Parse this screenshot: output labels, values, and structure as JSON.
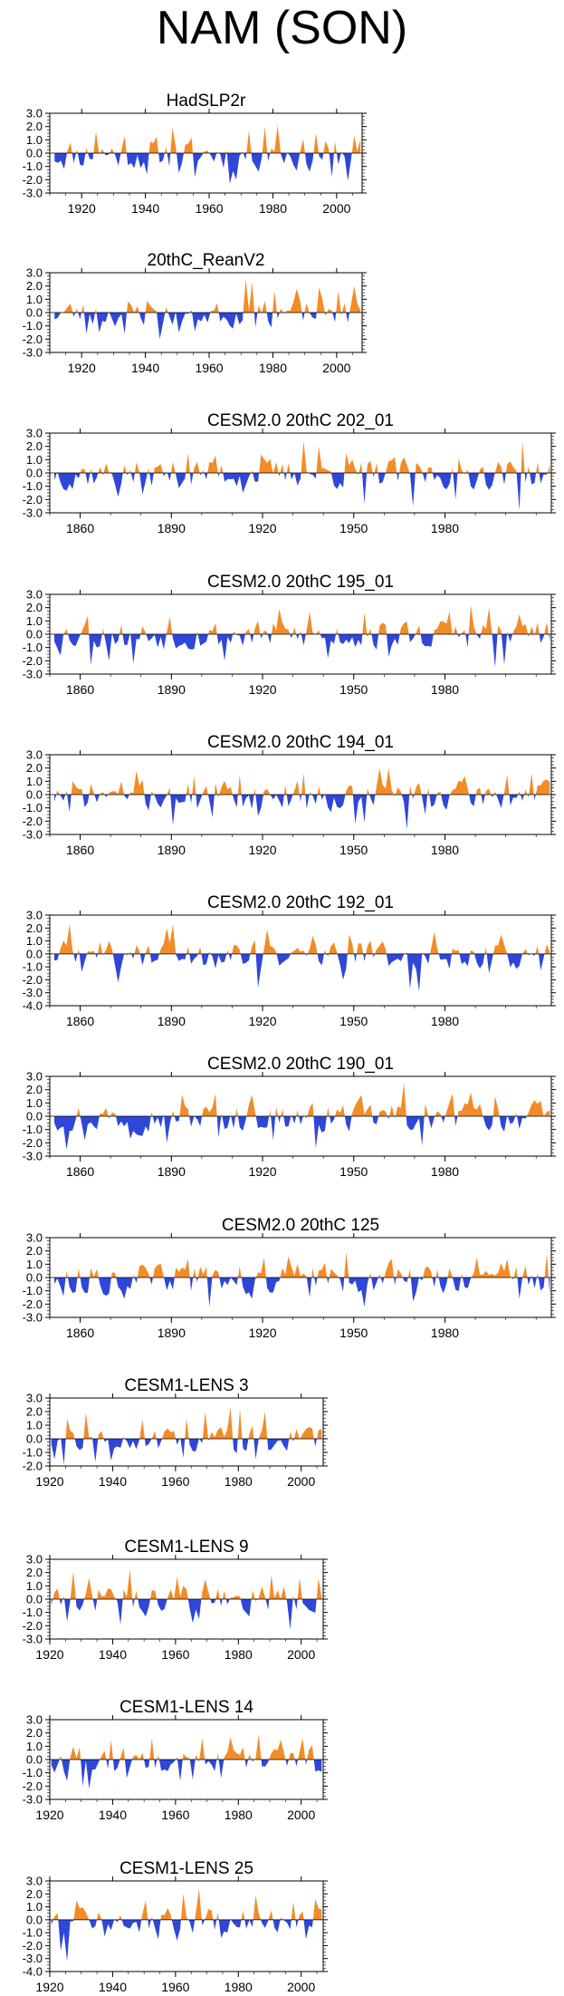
{
  "page": {
    "title": "NAM (SON)"
  },
  "colors": {
    "positive": "#f28c28",
    "negative": "#2f47d8",
    "axis": "#000000"
  },
  "chart_data": [
    {
      "type": "area",
      "title": "HadSLP2r",
      "x_range": [
        1910,
        2008
      ],
      "ylim": [
        -3.0,
        3.0
      ],
      "yticks": [
        "3.0",
        "2.0",
        "1.0",
        "0.0",
        "-1.0",
        "-2.0",
        "-3.0"
      ],
      "xticks": [
        "1920",
        "1940",
        "1960",
        "1980",
        "2000"
      ],
      "xtick_values": [
        1920,
        1940,
        1960,
        1980,
        2000
      ],
      "x_start": 1911,
      "amp_pos": 1.1,
      "amp_neg": 1.2,
      "seed": 11,
      "peaks": [
        [
          1924,
          1.6
        ],
        [
          1933,
          1.3
        ],
        [
          1948,
          1.9
        ],
        [
          1972,
          1.7
        ],
        [
          1977,
          2.0
        ],
        [
          1981,
          2.1
        ],
        [
          1993,
          1.5
        ],
        [
          2005,
          1.3
        ],
        [
          1940,
          -1.6
        ],
        [
          1950,
          -1.5
        ],
        [
          1955,
          -1.8
        ],
        [
          1966,
          -2.3
        ],
        [
          1968,
          -2.0
        ],
        [
          1991,
          -1.4
        ],
        [
          1998,
          -1.8
        ],
        [
          2003,
          -2.1
        ]
      ]
    },
    {
      "type": "area",
      "title": "20thC_ReanV2",
      "x_range": [
        1910,
        2008
      ],
      "ylim": [
        -3.0,
        3.0
      ],
      "yticks": [
        "3.0",
        "2.0",
        "1.0",
        "0.0",
        "-1.0",
        "-2.0",
        "-3.0"
      ],
      "xticks": [
        "1920",
        "1940",
        "1960",
        "1980",
        "2000"
      ],
      "xtick_values": [
        1920,
        1940,
        1960,
        1980,
        2000
      ],
      "x_start": 1911,
      "amp_pos": 0.9,
      "amp_neg": 1.0,
      "seed": 23,
      "peaks": [
        [
          1940,
          0.9
        ],
        [
          1962,
          0.7
        ],
        [
          1971,
          2.5
        ],
        [
          1973,
          2.3
        ],
        [
          1980,
          1.6
        ],
        [
          1987,
          1.8
        ],
        [
          1994,
          1.9
        ],
        [
          2000,
          1.6
        ],
        [
          2005,
          2.0
        ],
        [
          1921,
          -1.6
        ],
        [
          1925,
          -1.5
        ],
        [
          1933,
          -1.6
        ],
        [
          1944,
          -2.0
        ],
        [
          1950,
          -1.5
        ],
        [
          1955,
          -1.4
        ],
        [
          1967,
          -1.2
        ]
      ]
    },
    {
      "type": "area",
      "title": "CESM2.0 20thC 202_01",
      "x_range": [
        1850,
        2015
      ],
      "ylim": [
        -3.0,
        3.0
      ],
      "yticks": [
        "3.0",
        "2.0",
        "1.0",
        "0.0",
        "-1.0",
        "-2.0",
        "-3.0"
      ],
      "xticks": [
        "1860",
        "1890",
        "1920",
        "1950",
        "1980"
      ],
      "xtick_values": [
        1860,
        1890,
        1920,
        1950,
        1980
      ],
      "x_start": 1851,
      "amp_pos": 1.0,
      "amp_neg": 1.1,
      "seed": 37,
      "peaks": [
        [
          1895,
          1.5
        ],
        [
          1904,
          1.3
        ],
        [
          1919,
          1.4
        ],
        [
          1933,
          2.4
        ],
        [
          1938,
          2.0
        ],
        [
          1947,
          1.5
        ],
        [
          1963,
          1.2
        ],
        [
          1983,
          1.6
        ],
        [
          2005,
          2.4
        ],
        [
          1857,
          -1.2
        ],
        [
          1872,
          -1.8
        ],
        [
          1880,
          -1.6
        ],
        [
          1913,
          -1.5
        ],
        [
          1953,
          -2.3
        ],
        [
          1969,
          -2.5
        ],
        [
          1983,
          -2.0
        ],
        [
          2004,
          -2.8
        ]
      ]
    },
    {
      "type": "area",
      "title": "CESM2.0 20thC 195_01",
      "x_range": [
        1850,
        2015
      ],
      "ylim": [
        -3.0,
        3.0
      ],
      "yticks": [
        "3.0",
        "2.0",
        "1.0",
        "0.0",
        "-1.0",
        "-2.0",
        "-3.0"
      ],
      "xticks": [
        "1860",
        "1890",
        "1920",
        "1950",
        "1980"
      ],
      "xtick_values": [
        1860,
        1890,
        1920,
        1950,
        1980
      ],
      "x_start": 1851,
      "amp_pos": 1.0,
      "amp_neg": 1.1,
      "seed": 53,
      "peaks": [
        [
          1862,
          1.4
        ],
        [
          1889,
          1.3
        ],
        [
          1925,
          1.9
        ],
        [
          1935,
          1.7
        ],
        [
          1953,
          1.6
        ],
        [
          1981,
          1.7
        ],
        [
          1988,
          2.2
        ],
        [
          1994,
          2.0
        ],
        [
          2004,
          1.5
        ],
        [
          1853,
          -1.6
        ],
        [
          1863,
          -2.3
        ],
        [
          1869,
          -2.0
        ],
        [
          1877,
          -2.2
        ],
        [
          1907,
          -2.0
        ],
        [
          1941,
          -1.8
        ],
        [
          1961,
          -1.7
        ],
        [
          1996,
          -2.5
        ],
        [
          1999,
          -2.3
        ]
      ]
    },
    {
      "type": "area",
      "title": "CESM2.0 20thC 194_01",
      "x_range": [
        1850,
        2015
      ],
      "ylim": [
        -3.0,
        3.0
      ],
      "yticks": [
        "3.0",
        "2.0",
        "1.0",
        "0.0",
        "-1.0",
        "-2.0",
        "-3.0"
      ],
      "xticks": [
        "1860",
        "1890",
        "1920",
        "1950",
        "1980"
      ],
      "xtick_values": [
        1860,
        1890,
        1920,
        1950,
        1980
      ],
      "x_start": 1851,
      "amp_pos": 1.0,
      "amp_neg": 1.1,
      "seed": 71,
      "peaks": [
        [
          1878,
          1.8
        ],
        [
          1897,
          1.4
        ],
        [
          1912,
          1.5
        ],
        [
          1933,
          1.6
        ],
        [
          1958,
          2.0
        ],
        [
          1961,
          2.0
        ],
        [
          1986,
          1.4
        ],
        [
          2000,
          1.5
        ],
        [
          2008,
          1.6
        ],
        [
          1856,
          -1.3
        ],
        [
          1890,
          -2.3
        ],
        [
          1903,
          -1.7
        ],
        [
          1918,
          -1.6
        ],
        [
          1950,
          -2.2
        ],
        [
          1953,
          -2.1
        ],
        [
          1967,
          -2.6
        ],
        [
          1973,
          -1.5
        ]
      ]
    },
    {
      "type": "area",
      "title": "CESM2.0 20thC 192_01",
      "x_range": [
        1850,
        2015
      ],
      "ylim": [
        -4.0,
        3.0
      ],
      "yticks": [
        "3.0",
        "2.0",
        "1.0",
        "0.0",
        "-1.0",
        "-2.0",
        "-3.0",
        "-4.0"
      ],
      "xticks": [
        "1860",
        "1890",
        "1920",
        "1950",
        "1980"
      ],
      "xtick_values": [
        1860,
        1890,
        1920,
        1950,
        1980
      ],
      "x_start": 1851,
      "amp_pos": 1.0,
      "amp_neg": 1.1,
      "seed": 89,
      "peaks": [
        [
          1856,
          2.3
        ],
        [
          1888,
          2.0
        ],
        [
          1890,
          2.3
        ],
        [
          1921,
          1.9
        ],
        [
          1936,
          1.4
        ],
        [
          1948,
          1.5
        ],
        [
          1976,
          1.7
        ],
        [
          1998,
          1.5
        ],
        [
          1860,
          -1.4
        ],
        [
          1872,
          -2.2
        ],
        [
          1918,
          -2.6
        ],
        [
          1946,
          -2.0
        ],
        [
          1968,
          -2.7
        ],
        [
          1971,
          -2.9
        ],
        [
          1994,
          -1.5
        ],
        [
          2011,
          -1.3
        ]
      ]
    },
    {
      "type": "area",
      "title": "CESM2.0 20thC 190_01",
      "x_range": [
        1850,
        2015
      ],
      "ylim": [
        -3.0,
        3.0
      ],
      "yticks": [
        "3.0",
        "2.0",
        "1.0",
        "0.0",
        "-1.0",
        "-2.0",
        "-3.0"
      ],
      "xticks": [
        "1860",
        "1890",
        "1920",
        "1950",
        "1980"
      ],
      "xtick_values": [
        1860,
        1890,
        1920,
        1950,
        1980
      ],
      "x_start": 1851,
      "amp_pos": 1.0,
      "amp_neg": 1.1,
      "seed": 97,
      "peaks": [
        [
          1893,
          1.6
        ],
        [
          1904,
          1.7
        ],
        [
          1916,
          1.6
        ],
        [
          1952,
          1.6
        ],
        [
          1966,
          2.5
        ],
        [
          1982,
          1.7
        ],
        [
          1988,
          1.8
        ],
        [
          1996,
          1.5
        ],
        [
          1855,
          -2.5
        ],
        [
          1861,
          -1.8
        ],
        [
          1876,
          -1.7
        ],
        [
          1888,
          -2.0
        ],
        [
          1905,
          -1.6
        ],
        [
          1923,
          -1.8
        ],
        [
          1937,
          -2.4
        ],
        [
          1972,
          -2.2
        ]
      ]
    },
    {
      "type": "area",
      "title": "CESM2.0 20thC 125",
      "x_range": [
        1850,
        2015
      ],
      "ylim": [
        -3.0,
        3.0
      ],
      "yticks": [
        "3.0",
        "2.0",
        "1.0",
        "0.0",
        "-1.0",
        "-2.0",
        "-3.0"
      ],
      "xticks": [
        "1860",
        "1890",
        "1920",
        "1950",
        "1980"
      ],
      "xtick_values": [
        1860,
        1890,
        1920,
        1950,
        1980
      ],
      "x_start": 1851,
      "amp_pos": 1.0,
      "amp_neg": 1.1,
      "seed": 113,
      "peaks": [
        [
          1895,
          1.4
        ],
        [
          1920,
          1.5
        ],
        [
          1928,
          1.6
        ],
        [
          1947,
          1.9
        ],
        [
          1962,
          1.4
        ],
        [
          1990,
          1.5
        ],
        [
          2000,
          1.4
        ],
        [
          2013,
          1.8
        ],
        [
          1854,
          -1.4
        ],
        [
          1874,
          -1.6
        ],
        [
          1902,
          -2.2
        ],
        [
          1916,
          -1.6
        ],
        [
          1935,
          -1.5
        ],
        [
          1953,
          -2.2
        ],
        [
          1969,
          -1.8
        ],
        [
          2004,
          -1.6
        ]
      ]
    },
    {
      "type": "area",
      "title": "CESM1-LENS 3",
      "x_range": [
        1920,
        2007
      ],
      "ylim": [
        -2.0,
        3.0
      ],
      "yticks": [
        "3.0",
        "2.0",
        "1.0",
        "0.0",
        "-1.0",
        "-2.0"
      ],
      "xticks": [
        "1920",
        "1940",
        "1960",
        "1980",
        "2000"
      ],
      "xtick_values": [
        1920,
        1940,
        1960,
        1980,
        2000
      ],
      "x_start": 1920,
      "amp_pos": 0.9,
      "amp_neg": 0.9,
      "seed": 131,
      "peaks": [
        [
          1925,
          1.5
        ],
        [
          1931,
          1.9
        ],
        [
          1949,
          1.4
        ],
        [
          1963,
          1.5
        ],
        [
          1969,
          2.0
        ],
        [
          1977,
          2.3
        ],
        [
          1980,
          2.2
        ],
        [
          1985,
          2.3
        ],
        [
          1988,
          2.0
        ],
        [
          1921,
          -1.5
        ],
        [
          1924,
          -1.9
        ],
        [
          1934,
          -1.7
        ],
        [
          1939,
          -1.6
        ],
        [
          1962,
          -1.4
        ],
        [
          1985,
          -1.5
        ]
      ]
    },
    {
      "type": "area",
      "title": "CESM1-LENS 9",
      "x_range": [
        1920,
        2007
      ],
      "ylim": [
        -3.0,
        3.0
      ],
      "yticks": [
        "3.0",
        "2.0",
        "1.0",
        "0.0",
        "-1.0",
        "-2.0",
        "-3.0"
      ],
      "xticks": [
        "1920",
        "1940",
        "1960",
        "1980",
        "2000"
      ],
      "xtick_values": [
        1920,
        1940,
        1960,
        1980,
        2000
      ],
      "x_start": 1920,
      "amp_pos": 1.0,
      "amp_neg": 1.0,
      "seed": 149,
      "peaks": [
        [
          1927,
          2.1
        ],
        [
          1932,
          1.6
        ],
        [
          1945,
          2.2
        ],
        [
          1960,
          1.7
        ],
        [
          1969,
          1.5
        ],
        [
          1990,
          1.8
        ],
        [
          1999,
          1.6
        ],
        [
          2005,
          1.6
        ],
        [
          1925,
          -1.7
        ],
        [
          1942,
          -1.9
        ],
        [
          1950,
          -1.3
        ],
        [
          1965,
          -1.8
        ],
        [
          1967,
          -1.5
        ],
        [
          1983,
          -1.3
        ],
        [
          1996,
          -2.3
        ]
      ]
    },
    {
      "type": "area",
      "title": "CESM1-LENS 14",
      "x_range": [
        1920,
        2007
      ],
      "ylim": [
        -3.0,
        3.0
      ],
      "yticks": [
        "3.0",
        "2.0",
        "1.0",
        "0.0",
        "-1.0",
        "-2.0",
        "-3.0"
      ],
      "xticks": [
        "1920",
        "1940",
        "1960",
        "1980",
        "2000"
      ],
      "xtick_values": [
        1920,
        1940,
        1960,
        1980,
        2000
      ],
      "x_start": 1920,
      "amp_pos": 1.0,
      "amp_neg": 1.0,
      "seed": 163,
      "peaks": [
        [
          1939,
          1.5
        ],
        [
          1952,
          1.6
        ],
        [
          1968,
          1.6
        ],
        [
          1977,
          1.7
        ],
        [
          1986,
          1.9
        ],
        [
          1993,
          1.5
        ],
        [
          2000,
          1.6
        ],
        [
          1925,
          -1.6
        ],
        [
          1930,
          -2.0
        ],
        [
          1932,
          -2.2
        ],
        [
          1944,
          -1.4
        ],
        [
          1961,
          -1.6
        ],
        [
          1965,
          -1.5
        ],
        [
          1974,
          -1.4
        ],
        [
          2004,
          -0.9
        ]
      ]
    },
    {
      "type": "area",
      "title": "CESM1-LENS 25",
      "x_range": [
        1920,
        2007
      ],
      "ylim": [
        -4.0,
        3.0
      ],
      "yticks": [
        "3.0",
        "2.0",
        "1.0",
        "0.0",
        "-1.0",
        "-2.0",
        "-3.0",
        "-4.0"
      ],
      "xticks": [
        "1920",
        "1940",
        "1960",
        "1980",
        "2000"
      ],
      "xtick_values": [
        1920,
        1940,
        1960,
        1980,
        2000
      ],
      "x_start": 1920,
      "amp_pos": 0.9,
      "amp_neg": 1.0,
      "seed": 181,
      "peaks": [
        [
          1928,
          1.5
        ],
        [
          1950,
          1.5
        ],
        [
          1962,
          2.0
        ],
        [
          1967,
          2.4
        ],
        [
          1985,
          1.9
        ],
        [
          1997,
          1.4
        ],
        [
          2004,
          1.6
        ],
        [
          1923,
          -2.4
        ],
        [
          1925,
          -3.2
        ],
        [
          1937,
          -1.3
        ],
        [
          1954,
          -1.5
        ],
        [
          1960,
          -1.6
        ],
        [
          1974,
          -1.4
        ],
        [
          2001,
          -1.5
        ]
      ]
    }
  ]
}
